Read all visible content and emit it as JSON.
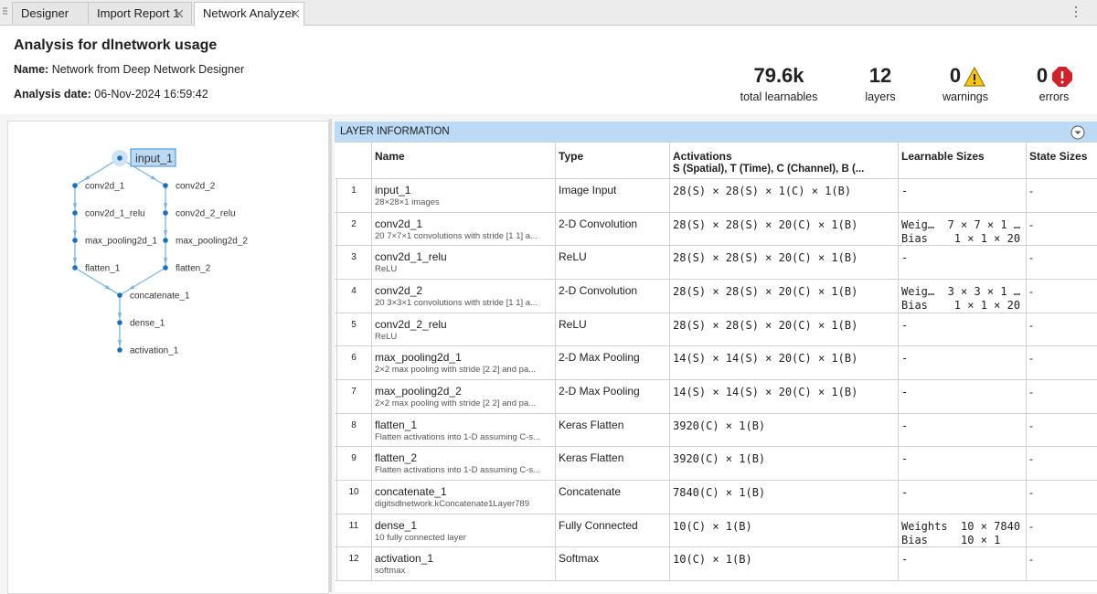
{
  "tabs": [
    "Designer",
    "Import Report 1",
    "Network Analyzer"
  ],
  "header": {
    "title": "Analysis for dlnetwork usage",
    "name_label": "Name:",
    "name": "Network from Deep Network Designer",
    "date_label": "Analysis date:",
    "date": "06-Nov-2024 16:59:42"
  },
  "summary": [
    {
      "value": "79.6k",
      "label": "total learnables"
    },
    {
      "value": 12,
      "label": "layers"
    },
    {
      "value": 0,
      "label": "warnings"
    },
    {
      "value": 0,
      "label": "errors"
    }
  ],
  "graph": {
    "nodes": [
      "input_1",
      "conv2d_1",
      "conv2d_2",
      "conv2d_1_relu",
      "conv2d_2_relu",
      "max_pooling2d_1",
      "max_pooling2d_2",
      "flatten_1",
      "flatten_2",
      "concatenate_1",
      "dense_1",
      "activation_1"
    ]
  },
  "table": {
    "title": "LAYER INFORMATION",
    "columns": {
      "name": "Name",
      "type": "Type",
      "activations": "Activations",
      "activations_sub": "S (Spatial), T (Time), C (Channel), B (...",
      "learnables": "Learnable Sizes",
      "state": "State Sizes"
    },
    "rows": [
      {
        "index": 1,
        "name": "input_1",
        "description": "28×28×1 images",
        "type": "Image Input",
        "activations": "28(S) × 28(S) × 1(C) × 1(B)",
        "learnables": [
          "-"
        ],
        "state": "-"
      },
      {
        "index": 2,
        "name": "conv2d_1",
        "description": "20 7×7×1 convolutions with stride [1 1] a...",
        "type": "2-D Convolution",
        "activations": "28(S) × 28(S) × 20(C) × 1(B)",
        "learnables": [
          "Weig…  7 × 7 × 1 …",
          "Bias    1 × 1 × 20"
        ],
        "state": "-"
      },
      {
        "index": 3,
        "name": "conv2d_1_relu",
        "description": "ReLU",
        "type": "ReLU",
        "activations": "28(S) × 28(S) × 20(C) × 1(B)",
        "learnables": [
          "-"
        ],
        "state": "-"
      },
      {
        "index": 4,
        "name": "conv2d_2",
        "description": "20 3×3×1 convolutions with stride [1 1] a...",
        "type": "2-D Convolution",
        "activations": "28(S) × 28(S) × 20(C) × 1(B)",
        "learnables": [
          "Weig…  3 × 3 × 1 …",
          "Bias    1 × 1 × 20"
        ],
        "state": "-"
      },
      {
        "index": 5,
        "name": "conv2d_2_relu",
        "description": "ReLU",
        "type": "ReLU",
        "activations": "28(S) × 28(S) × 20(C) × 1(B)",
        "learnables": [
          "-"
        ],
        "state": "-"
      },
      {
        "index": 6,
        "name": "max_pooling2d_1",
        "description": "2×2 max pooling with stride [2 2] and pa...",
        "type": "2-D Max Pooling",
        "activations": "14(S) × 14(S) × 20(C) × 1(B)",
        "learnables": [
          "-"
        ],
        "state": "-"
      },
      {
        "index": 7,
        "name": "max_pooling2d_2",
        "description": "2×2 max pooling with stride [2 2] and pa...",
        "type": "2-D Max Pooling",
        "activations": "14(S) × 14(S) × 20(C) × 1(B)",
        "learnables": [
          "-"
        ],
        "state": "-"
      },
      {
        "index": 8,
        "name": "flatten_1",
        "description": "Flatten activations into 1-D assuming C-s...",
        "type": "Keras Flatten",
        "activations": "3920(C) × 1(B)",
        "learnables": [
          "-"
        ],
        "state": "-"
      },
      {
        "index": 9,
        "name": "flatten_2",
        "description": "Flatten activations into 1-D assuming C-s...",
        "type": "Keras Flatten",
        "activations": "3920(C) × 1(B)",
        "learnables": [
          "-"
        ],
        "state": "-"
      },
      {
        "index": 10,
        "name": "concatenate_1",
        "description": "digitsdlnetwork.kConcatenate1Layer789",
        "type": "Concatenate",
        "activations": "7840(C) × 1(B)",
        "learnables": [
          "-"
        ],
        "state": "-"
      },
      {
        "index": 11,
        "name": "dense_1",
        "description": "10 fully connected layer",
        "type": "Fully Connected",
        "activations": "10(C) × 1(B)",
        "learnables": [
          "Weights  10 × 7840",
          "Bias     10 × 1"
        ],
        "state": "-"
      },
      {
        "index": 12,
        "name": "activation_1",
        "description": "softmax",
        "type": "Softmax",
        "activations": "10(C) × 1(B)",
        "learnables": [
          "-"
        ],
        "state": "-"
      }
    ]
  }
}
